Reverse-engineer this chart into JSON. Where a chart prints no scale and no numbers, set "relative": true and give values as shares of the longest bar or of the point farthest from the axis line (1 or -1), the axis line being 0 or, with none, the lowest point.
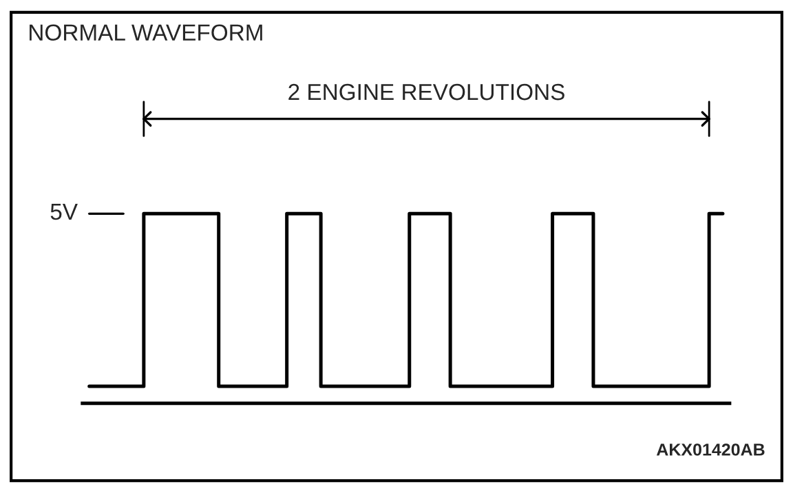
{
  "chart_data": {
    "type": "step",
    "title": "NORMAL WAVEFORM",
    "relative": true,
    "legend": false,
    "marker": "none",
    "line_style": "solid",
    "categories": [
      null,
      null,
      null,
      null,
      null,
      null,
      null,
      null,
      null,
      null,
      null,
      null,
      null,
      null,
      null,
      null,
      null,
      null,
      null,
      null,
      null,
      null,
      null,
      null,
      null,
      null,
      null,
      null,
      null,
      null,
      null,
      null,
      null,
      null,
      null,
      null,
      null,
      null,
      null,
      null,
      null,
      null,
      null,
      null,
      null,
      null,
      null,
      null,
      null,
      null,
      null,
      null,
      null,
      null,
      null,
      null,
      null,
      null,
      null,
      null,
      null,
      null,
      null,
      null,
      null,
      null,
      null,
      null,
      null,
      null,
      null,
      null,
      null,
      null,
      null,
      null,
      null,
      null,
      null,
      null,
      null,
      null,
      null,
      null,
      null,
      null,
      null,
      null,
      null,
      null,
      null,
      null,
      null,
      null
    ],
    "series": [
      {
        "color": "#000000",
        "values": [
          0.09,
          0.09,
          0.09,
          0.09,
          0.09,
          0.09,
          0.09,
          0.09,
          1,
          1,
          1,
          1,
          1,
          1,
          1,
          1,
          1,
          1,
          1,
          0.09,
          0.09,
          0.09,
          0.09,
          0.09,
          0.09,
          0.09,
          0.09,
          0.09,
          0.09,
          1,
          1,
          1,
          1,
          1,
          0.09,
          0.09,
          0.09,
          0.09,
          0.09,
          0.09,
          0.09,
          0.09,
          0.09,
          0.09,
          0.09,
          0.09,
          0.09,
          1,
          1,
          1,
          1,
          1,
          1,
          0.09,
          0.09,
          0.09,
          0.09,
          0.09,
          0.09,
          0.09,
          0.09,
          0.09,
          0.09,
          0.09,
          0.09,
          0.09,
          0.09,
          0.09,
          1,
          1,
          1,
          1,
          1,
          1,
          0.09,
          0.09,
          0.09,
          0.09,
          0.09,
          0.09,
          0.09,
          0.09,
          0.09,
          0.09,
          0.09,
          0.09,
          0.09,
          0.09,
          0.09,
          0.09,
          0.09,
          1,
          1,
          1
        ]
      }
    ],
    "annotations": [
      "2 ENGINE REVOLUTIONS",
      "5V",
      "AKX01420AB"
    ]
  }
}
